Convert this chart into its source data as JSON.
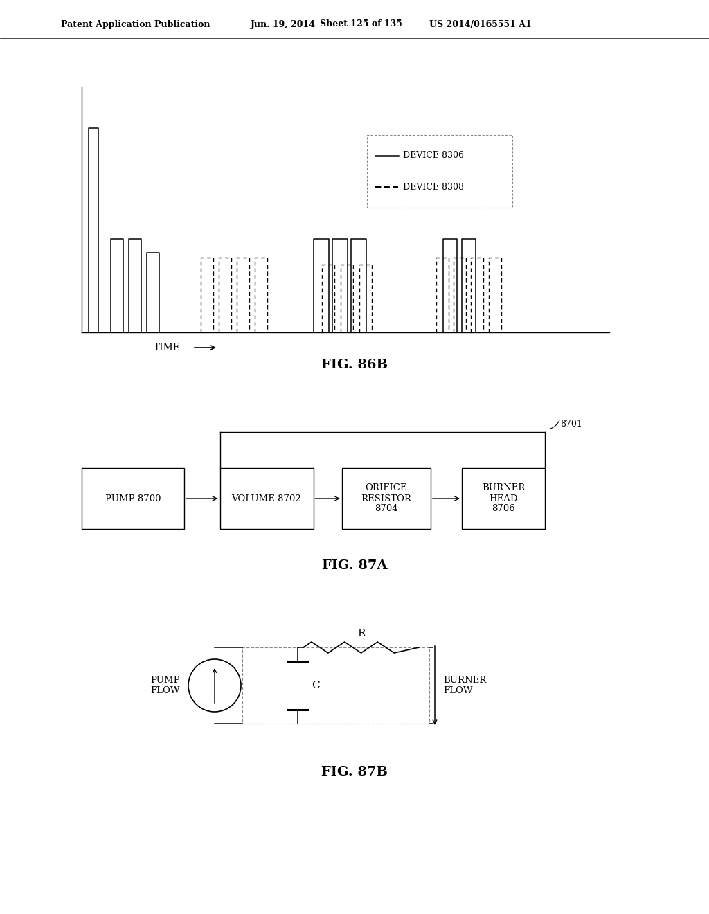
{
  "bg_color": "#ffffff",
  "header_text": "Patent Application Publication",
  "header_date": "Jun. 19, 2014",
  "header_sheet": "Sheet 125 of 135",
  "header_patent": "US 2014/0165551 A1",
  "fig86b_label": "FIG. 86B",
  "fig87a_label": "FIG. 87A",
  "fig87b_label": "FIG. 87B",
  "time_label": "TIME",
  "legend_device1": "DEVICE 8306",
  "legend_device2": "DEVICE 8308",
  "block_pump": "PUMP 8700",
  "block_volume": "VOLUME 8702",
  "block_orifice": "ORIFICE\nRESISTOR\n8704",
  "block_burner": "BURNER\nHEAD\n8706",
  "label_8701": "8701",
  "pump_flow_label": "PUMP\nFLOW",
  "burner_flow_label": "BURNER\nFLOW",
  "R_label": "R",
  "C_label": "C"
}
